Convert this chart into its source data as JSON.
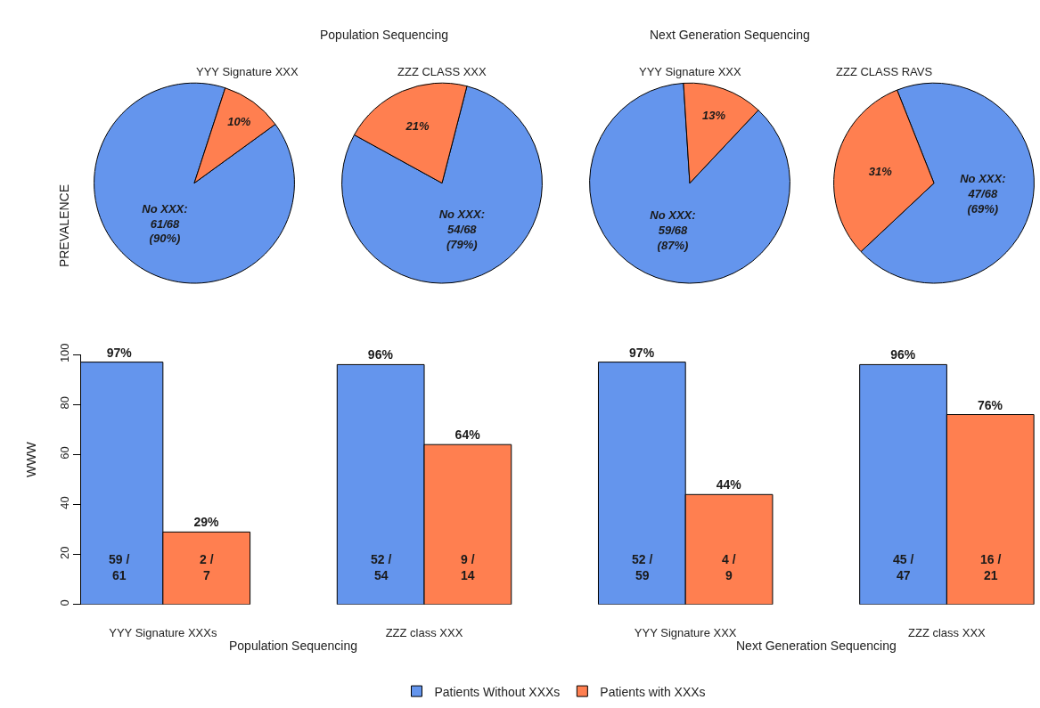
{
  "chart_data": [
    {
      "type": "pie",
      "title": "YYY Signature XXX",
      "ylabel": "PREVALENCE",
      "annotations": [
        "Population Sequencing"
      ],
      "categories": [
        null,
        null
      ],
      "values": [
        90,
        10
      ],
      "colors": [
        "#6495ed",
        "#ff7f50"
      ],
      "value_labels": [
        "No XXX:\n61/68\n(90%)",
        "10%"
      ]
    },
    {
      "type": "pie",
      "title": "ZZZ CLASS XXX",
      "categories": [
        null,
        null
      ],
      "values": [
        79,
        21
      ],
      "colors": [
        "#6495ed",
        "#ff7f50"
      ],
      "value_labels": [
        "No XXX:\n54/68\n(79%)",
        "21%"
      ]
    },
    {
      "type": "pie",
      "title": "YYY Signature XXX",
      "annotations": [
        "Next Generation Sequencing"
      ],
      "categories": [
        null,
        null
      ],
      "values": [
        87,
        13
      ],
      "colors": [
        "#6495ed",
        "#ff7f50"
      ],
      "value_labels": [
        "No XXX:\n59/68\n(87%)",
        "13%"
      ]
    },
    {
      "type": "pie",
      "title": "ZZZ CLASS RAVS",
      "categories": [
        null,
        null
      ],
      "values": [
        69,
        31
      ],
      "colors": [
        "#6495ed",
        "#ff7f50"
      ],
      "value_labels": [
        "No XXX:\n47/68\n(69%)",
        "31%"
      ]
    },
    {
      "type": "bar",
      "ylabel": "WWW",
      "categories": [
        "YYY Signature XXXs",
        "ZZZ class XXX",
        "YYY Signature XXX",
        "ZZZ class XXX"
      ],
      "ylim": [
        0,
        100
      ],
      "yticks": [
        0,
        20,
        40,
        60,
        80,
        100
      ],
      "legend": "bottom",
      "series": [
        {
          "name": "Patients Without XXXs",
          "color": "#6495ed",
          "values": [
            97,
            96,
            97,
            96
          ],
          "value_labels": [
            "97%",
            "96%",
            "97%",
            "96%"
          ]
        },
        {
          "name": "Patients with XXXs",
          "color": "#ff7f50",
          "values": [
            29,
            64,
            44,
            76
          ],
          "value_labels": [
            "29%",
            "64%",
            "44%",
            "76%"
          ]
        }
      ],
      "annotations": [
        "59 /\n61",
        "2 /\n7",
        "52 /\n54",
        "9 /\n14",
        "52 /\n59",
        "4 /\n9",
        "45 /\n47",
        "16 /\n21",
        "Population Sequencing",
        "Next Generation Sequencing"
      ]
    }
  ]
}
